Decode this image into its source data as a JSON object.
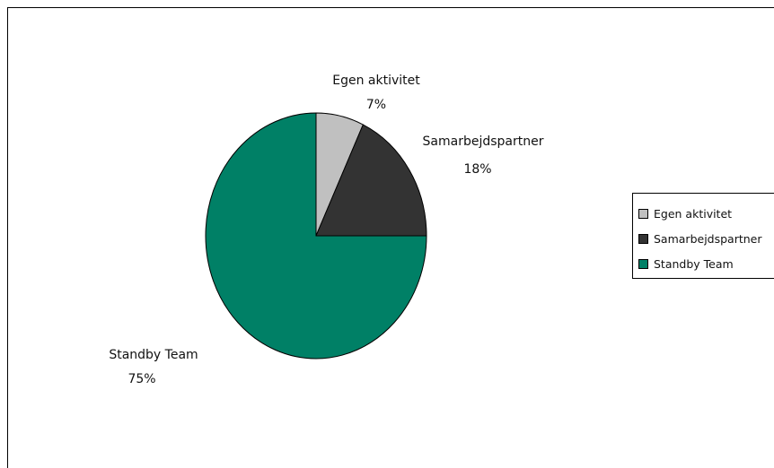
{
  "chart_data": {
    "type": "pie",
    "title": "",
    "legend_position": "right",
    "slices": [
      {
        "label": "Egen aktivitet",
        "value": 7,
        "percent_label": "7%",
        "color": "#c0c0c0"
      },
      {
        "label": "Samarbejdspartner",
        "value": 18,
        "percent_label": "18%",
        "color": "#333333"
      },
      {
        "label": "Standby Team",
        "value": 75,
        "percent_label": "75%",
        "color": "#008066"
      }
    ]
  }
}
